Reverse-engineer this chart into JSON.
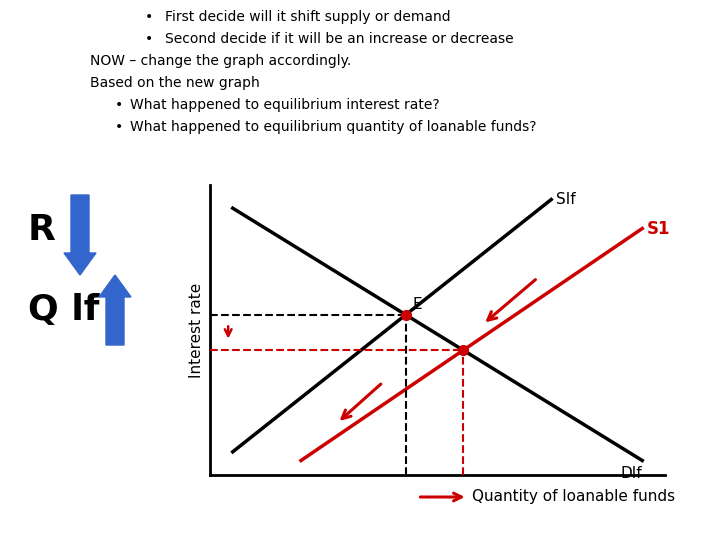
{
  "bg_color": "#ffffff",
  "text_color": "#000000",
  "bullet_lines": [
    "First decide will it shift supply or demand",
    "Second decide if it will be an increase or decrease"
  ],
  "body_lines": [
    "NOW – change the graph accordingly.",
    "Based on the new graph"
  ],
  "sub_bullets": [
    "What happened to equilibrium interest rate?",
    "What happened to equilibrium quantity of loanable funds?"
  ],
  "ylabel": "Interest rate",
  "xlabel_arrow_label": "Quantity of loanable funds",
  "SIf_label": "SIf",
  "S1_label": "S1",
  "DIf_label": "DIf",
  "E_label": "E",
  "R_label": "R",
  "Qlf_label": "Q lf",
  "supply_color": "#000000",
  "demand_color": "#000000",
  "s1_color": "#cc0000",
  "dashed_black_color": "#000000",
  "dashed_red_color": "#cc0000",
  "arrow_color": "#cc0000",
  "blue_arrow_color": "#3366cc",
  "font_size_text": 10,
  "font_size_label": 11,
  "font_size_RQ": 26
}
